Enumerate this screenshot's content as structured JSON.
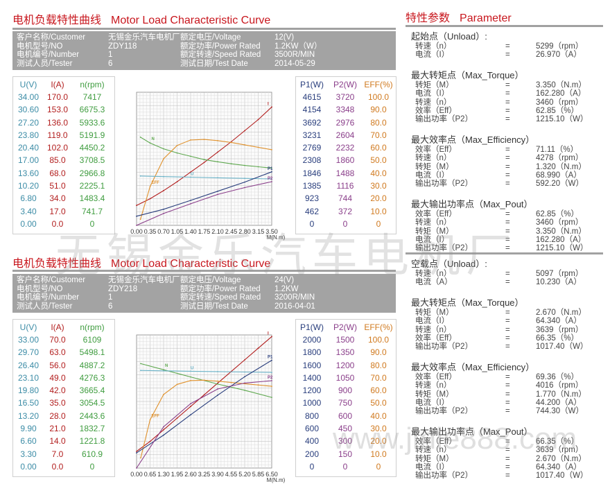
{
  "page": {
    "title_cn": "电机负载特性曲线",
    "title_en": "Motor Load Characteristic Curve",
    "param_title_cn": "特性参数",
    "param_title_en": "Parameter",
    "watermark": "无锡金乐汽车电机厂",
    "watermark_url": "www.jinle888.com"
  },
  "panels": [
    {
      "info": {
        "customer_label": "客户名称/Customer",
        "customer": "无锡金乐汽车电机厂",
        "voltage_label": "额定电压/Voltage",
        "voltage": "12(V)",
        "model_label": "电机型号/NO",
        "model": "ZDY118",
        "power_label": "额定功率/Power Rated",
        "power": "1.2KW（W）",
        "number_label": "电机编号/Number",
        "number": "1",
        "speed_label": "额定转速/Speed Rated",
        "speed": "3500R/MIN",
        "tester_label": "测试人员/Tester",
        "tester": "6",
        "date_label": "测试日期/Test Date",
        "date": "2014-05-29"
      },
      "table": {
        "headers": [
          "U(V)",
          "I(A)",
          "n(rpm)",
          "P1(W)",
          "P2(W)",
          "EFF(%)"
        ],
        "U": [
          "34.00",
          "30.60",
          "27.20",
          "23.80",
          "20.40",
          "17.00",
          "13.60",
          "10.20",
          "6.80",
          "3.40",
          "0.00"
        ],
        "I": [
          "170.0",
          "153.0",
          "136.0",
          "119.0",
          "102.0",
          "85.0",
          "68.0",
          "51.0",
          "34.0",
          "17.0",
          "0.0"
        ],
        "n": [
          "7417",
          "6675.3",
          "5933.6",
          "5191.9",
          "4450.2",
          "3708.5",
          "2966.8",
          "2225.1",
          "1483.4",
          "741.7",
          "0"
        ],
        "P1": [
          "4615",
          "4154",
          "3692",
          "3231",
          "2769",
          "2308",
          "1846",
          "1385",
          "923",
          "462",
          "0"
        ],
        "P2": [
          "3720",
          "3348",
          "2976",
          "2604",
          "2232",
          "1860",
          "1488",
          "1116",
          "744",
          "372",
          "0"
        ],
        "EFF": [
          "100.0",
          "90.0",
          "80.0",
          "70.0",
          "60.0",
          "50.0",
          "40.0",
          "30.0",
          "20.0",
          "10.0",
          "0"
        ]
      }
    },
    {
      "info": {
        "customer_label": "客户名称/Customer",
        "customer": "无锡金乐汽车电机厂",
        "voltage_label": "额定电压/Voltage",
        "voltage": "24(V)",
        "model_label": "电机型号/NO",
        "model": "ZDY218",
        "power_label": "额定功率/Power Rated",
        "power": "1.2KW",
        "number_label": "电机编号/Number",
        "number": "1",
        "speed_label": "额定转速/Speed Rated",
        "speed": "3200R/MIN",
        "tester_label": "测试人员/Tester",
        "tester": "6",
        "date_label": "测试日期/Test Date",
        "date": "2016-04-01"
      },
      "table": {
        "headers": [
          "U(V)",
          "I(A)",
          "n(rpm)",
          "P1(W)",
          "P2(W)",
          "EFF(%)"
        ],
        "U": [
          "33.00",
          "29.70",
          "26.40",
          "23.10",
          "19.80",
          "16.50",
          "13.20",
          "9.90",
          "6.60",
          "3.30",
          "0.00"
        ],
        "I": [
          "70.0",
          "63.0",
          "56.0",
          "49.0",
          "42.0",
          "35.0",
          "28.0",
          "21.0",
          "14.0",
          "7.0",
          "0.0"
        ],
        "n": [
          "6109",
          "5498.1",
          "4887.2",
          "4276.3",
          "3665.4",
          "3054.5",
          "2443.6",
          "1832.7",
          "1221.8",
          "610.9",
          "0"
        ],
        "P1": [
          "2000",
          "1800",
          "1600",
          "1400",
          "1200",
          "1000",
          "800",
          "600",
          "400",
          "200",
          "0"
        ],
        "P2": [
          "1500",
          "1350",
          "1200",
          "1050",
          "900",
          "750",
          "600",
          "450",
          "300",
          "150",
          "0"
        ],
        "EFF": [
          "100.0",
          "90.0",
          "80.0",
          "70.0",
          "60.0",
          "50.0",
          "40.0",
          "30.0",
          "20.0",
          "10.0",
          "0"
        ]
      }
    }
  ],
  "params": [
    [
      {
        "title": "起始点（Unload）:",
        "rows": [
          [
            "转速（n）",
            "=",
            "5299（rpm）"
          ],
          [
            "电流（I）",
            "=",
            "26.970（A）"
          ]
        ]
      },
      {
        "title": "最大转矩点（Max_Torque）",
        "rows": [
          [
            "转矩（M）",
            "=",
            "3.350（N.m）"
          ],
          [
            "电流（I）",
            "=",
            "162.280（A）"
          ],
          [
            "转速（n）",
            "=",
            "3460（rpm）"
          ],
          [
            "效率（Eff）",
            "=",
            "62.85（%）"
          ],
          [
            "输出功率（P2）",
            "=",
            "1215.10（W）"
          ]
        ]
      },
      {
        "title": "最大效率点（Max_Efficiency）",
        "rows": [
          [
            "效率（Eff）",
            "=",
            "71.11（%）"
          ],
          [
            "转速（n）",
            "=",
            "4278（rpm）"
          ],
          [
            "转矩（M）",
            "=",
            "1.320（N.m）"
          ],
          [
            "电流（I）",
            "=",
            "68.990（A）"
          ],
          [
            "输出功率（P2）",
            "=",
            "592.20（W）"
          ]
        ]
      },
      {
        "title": "最大输出功率点（Max_Pout）",
        "rows": [
          [
            "效率（Eff）",
            "=",
            "62.85（%）"
          ],
          [
            "转速（n）",
            "=",
            "3460（rpm）"
          ],
          [
            "转矩（M）",
            "=",
            "3.350（N.m）"
          ],
          [
            "电流（I）",
            "=",
            "162.280（A）"
          ],
          [
            "输出功率（P2）",
            "=",
            "1215.10（W）"
          ]
        ]
      }
    ],
    [
      {
        "title": "空载点（Unload）:",
        "rows": [
          [
            "转速（n）",
            "=",
            "5097（rpm）"
          ],
          [
            "电流（A）",
            "=",
            "10.230（A）"
          ]
        ]
      },
      {
        "title": "最大转矩点（Max_Torque）",
        "rows": [
          [
            "转矩（M）",
            "=",
            "2.670（N.m）"
          ],
          [
            "电流（I）",
            "=",
            "64.340（A）"
          ],
          [
            "转速（n）",
            "=",
            "3639（rpm）"
          ],
          [
            "效率（Eff）",
            "=",
            "66.35（%）"
          ],
          [
            "输出功率（P2）",
            "=",
            "1017.40（W）"
          ]
        ]
      },
      {
        "title": "最大效率点（Max_Efficiency）",
        "rows": [
          [
            "效率（Eff）",
            "=",
            "69.36（%）"
          ],
          [
            "转速（n）",
            "=",
            "4016（rpm）"
          ],
          [
            "转矩（M）",
            "=",
            "1.770（N.m）"
          ],
          [
            "电流（I）",
            "=",
            "44.200（A）"
          ],
          [
            "输出功率（P2）",
            "=",
            "744.30（W）"
          ]
        ]
      },
      {
        "title": "最大输出功率点（Max_Pout）",
        "rows": [
          [
            "效率（Eff）",
            "=",
            "66.35（%）"
          ],
          [
            "转速（n）",
            "=",
            "3639（rpm）"
          ],
          [
            "转矩（M）",
            "=",
            "2.670（N.m）"
          ],
          [
            "电流（I）",
            "=",
            "64.340（A）"
          ],
          [
            "输出功率（P2）",
            "=",
            "1017.40（W）"
          ]
        ]
      }
    ]
  ],
  "chart_data": [
    {
      "type": "line",
      "xlabel": "M(N.m)",
      "x_ticks": [
        "0.00",
        "0.35",
        "0.70",
        "1.05",
        "1.40",
        "1.75",
        "2.10",
        "2.45",
        "2.80",
        "3.15",
        "3.50"
      ],
      "xlim": [
        0,
        3.5
      ],
      "grid": true,
      "series": [
        {
          "name": "I",
          "color": "#b21d1d",
          "points": [
            [
              0,
              27
            ],
            [
              0.35,
              36
            ],
            [
              0.7,
              47
            ],
            [
              1.05,
              59
            ],
            [
              1.4,
              72
            ],
            [
              1.75,
              85
            ],
            [
              2.1,
              99
            ],
            [
              2.45,
              113
            ],
            [
              2.8,
              128
            ],
            [
              3.15,
              143
            ],
            [
              3.5,
              160
            ]
          ]
        },
        {
          "name": "N",
          "color": "#5fa84f",
          "points": [
            [
              0.1,
              5300
            ],
            [
              0.35,
              4950
            ],
            [
              0.7,
              4600
            ],
            [
              1.05,
              4350
            ],
            [
              1.4,
              4150
            ],
            [
              1.75,
              3950
            ],
            [
              2.1,
              3820
            ],
            [
              2.45,
              3700
            ],
            [
              2.8,
              3600
            ],
            [
              3.15,
              3520
            ],
            [
              3.5,
              3440
            ]
          ]
        },
        {
          "name": "EFF",
          "color": "#e0922e",
          "points": [
            [
              0.1,
              5
            ],
            [
              0.35,
              32
            ],
            [
              0.7,
              55
            ],
            [
              1.05,
              66
            ],
            [
              1.4,
              70.5
            ],
            [
              1.75,
              71
            ],
            [
              2.1,
              70
            ],
            [
              2.45,
              68.5
            ],
            [
              2.8,
              66.5
            ],
            [
              3.15,
              64.5
            ],
            [
              3.5,
              62.5
            ]
          ]
        },
        {
          "name": "U",
          "color": "#6ab3c8",
          "points": [
            [
              0.1,
              12.6
            ],
            [
              0.7,
              12.45
            ],
            [
              1.4,
              12.3
            ],
            [
              2.1,
              12.15
            ],
            [
              2.8,
              12.0
            ],
            [
              3.5,
              11.85
            ]
          ]
        },
        {
          "name": "P1",
          "color": "#283d7c",
          "points": [
            [
              0,
              330
            ],
            [
              0.7,
              580
            ],
            [
              1.4,
              900
            ],
            [
              2.1,
              1230
            ],
            [
              2.8,
              1560
            ],
            [
              3.5,
              1930
            ]
          ]
        },
        {
          "name": "P2",
          "color": "#8a3e8a",
          "points": [
            [
              0,
              0
            ],
            [
              0.7,
              330
            ],
            [
              1.4,
              600
            ],
            [
              2.1,
              860
            ],
            [
              2.8,
              1050
            ],
            [
              3.5,
              1215
            ]
          ]
        }
      ]
    },
    {
      "type": "line",
      "xlabel": "M(N.m)",
      "x_ticks": [
        "0.00",
        "0.65",
        "1.30",
        "1.95",
        "2.60",
        "3.25",
        "3.90",
        "4.55",
        "5.20",
        "5.85",
        "6.50"
      ],
      "xlim": [
        0,
        6.5
      ],
      "grid": true,
      "series": [
        {
          "name": "I",
          "color": "#b21d1d",
          "points": [
            [
              0,
              10
            ],
            [
              0.65,
              16
            ],
            [
              1.3,
              23
            ],
            [
              1.95,
              30
            ],
            [
              2.6,
              37
            ],
            [
              3.25,
              44
            ],
            [
              3.9,
              51
            ],
            [
              4.55,
              58
            ],
            [
              5.2,
              65
            ],
            [
              5.85,
              72
            ],
            [
              6.5,
              79
            ]
          ]
        },
        {
          "name": "N",
          "color": "#5fa84f",
          "points": [
            [
              0.2,
              5100
            ],
            [
              1.3,
              4800
            ],
            [
              2.6,
              4450
            ],
            [
              3.9,
              4100
            ],
            [
              5.2,
              3800
            ],
            [
              6.5,
              3450
            ]
          ]
        },
        {
          "name": "U",
          "color": "#6ab3c8",
          "points": [
            [
              0.2,
              24.2
            ],
            [
              1.3,
              24.1
            ],
            [
              2.6,
              24.0
            ],
            [
              3.9,
              23.9
            ],
            [
              5.2,
              23.8
            ],
            [
              6.5,
              23.7
            ]
          ]
        },
        {
          "name": "EFF",
          "color": "#e0922e",
          "points": [
            [
              0.2,
              8
            ],
            [
              0.65,
              38
            ],
            [
              1.3,
              58
            ],
            [
              1.95,
              66
            ],
            [
              2.6,
              69
            ],
            [
              3.25,
              69.3
            ],
            [
              3.9,
              68.5
            ],
            [
              4.55,
              67.5
            ],
            [
              5.2,
              66.5
            ],
            [
              5.85,
              65.5
            ],
            [
              6.5,
              64.5
            ]
          ]
        },
        {
          "name": "P1",
          "color": "#283d7c",
          "points": [
            [
              0,
              240
            ],
            [
              1.3,
              520
            ],
            [
              2.6,
              840
            ],
            [
              3.9,
              1150
            ],
            [
              5.2,
              1440
            ],
            [
              6.5,
              1700
            ]
          ]
        },
        {
          "name": "P2",
          "color": "#8a3e8a",
          "points": [
            [
              0,
              0
            ],
            [
              1.3,
              480
            ],
            [
              2.6,
              750
            ],
            [
              3.9,
              920
            ],
            [
              5.2,
              990
            ],
            [
              6.5,
              1017
            ]
          ]
        }
      ]
    }
  ]
}
